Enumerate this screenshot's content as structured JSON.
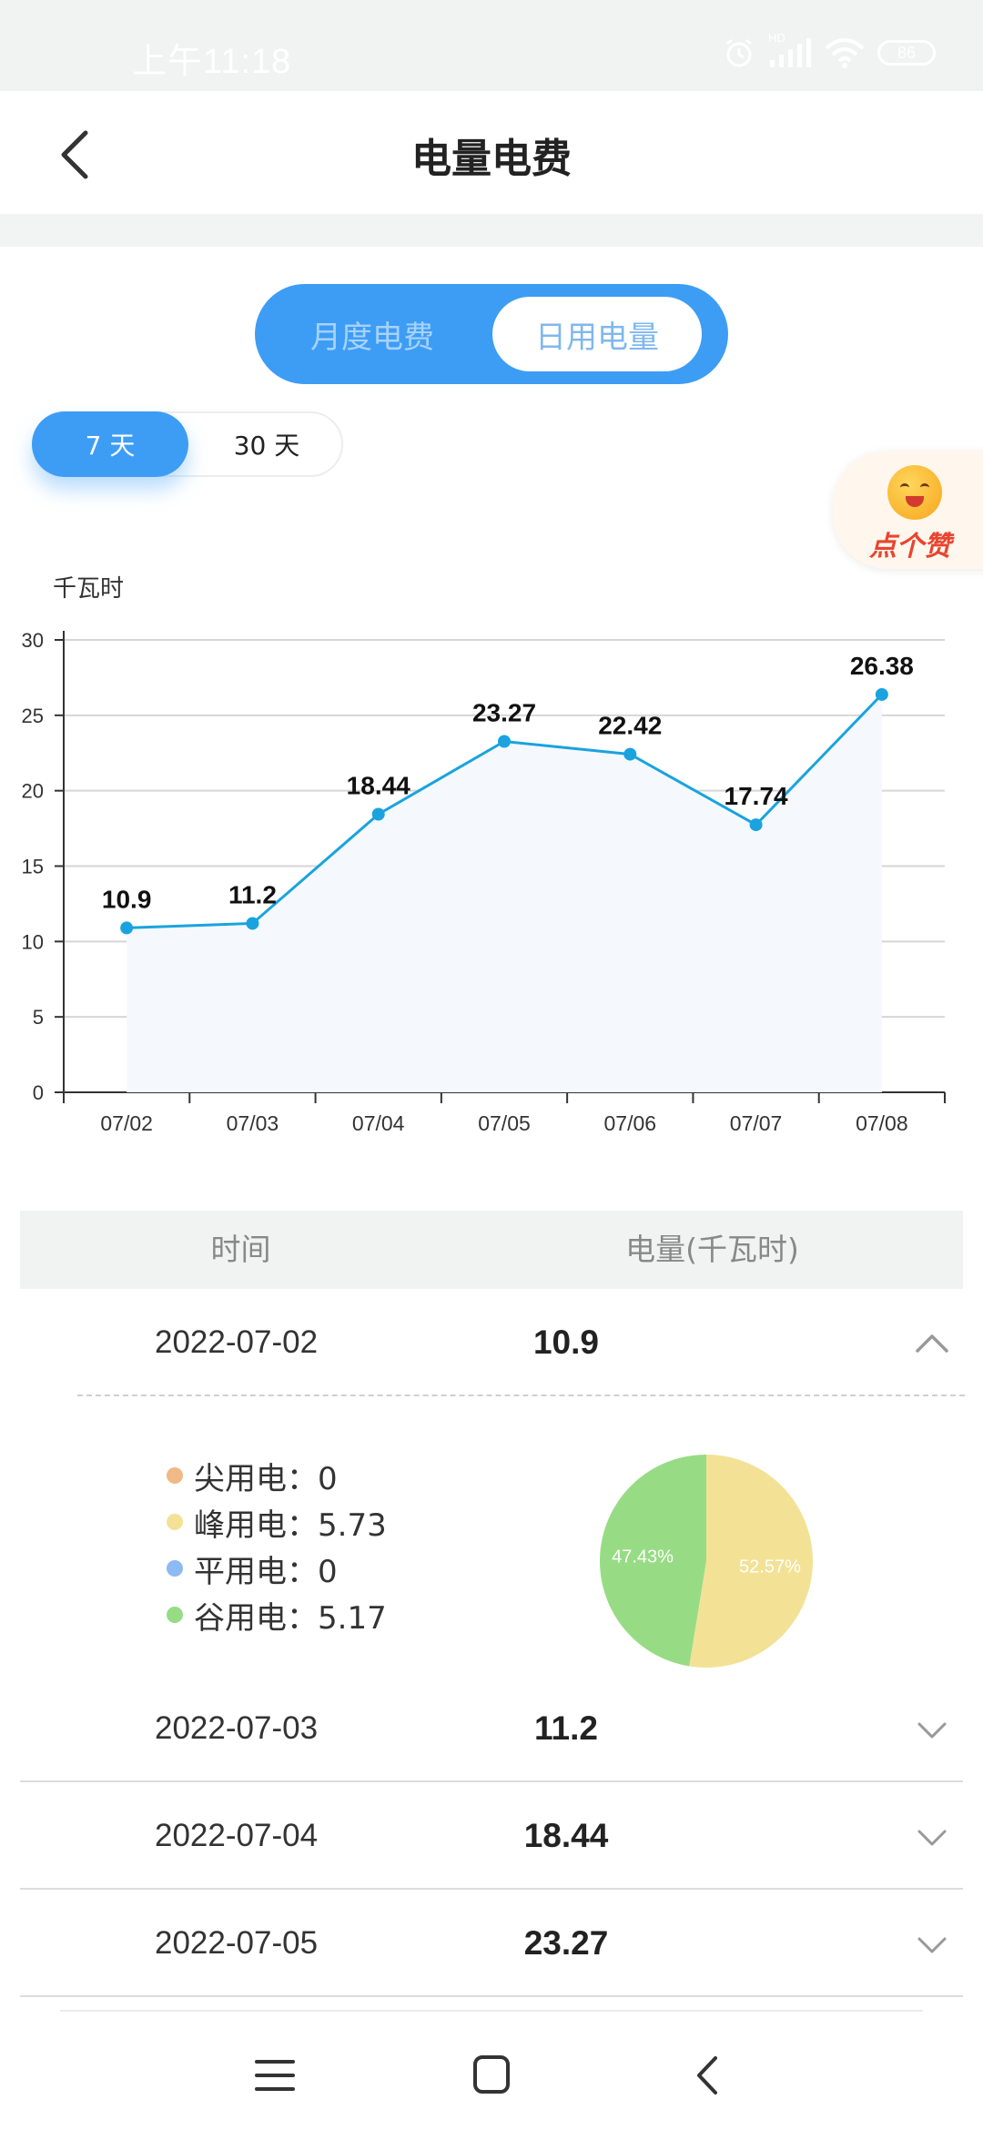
{
  "status_bar": {
    "time": "上午11:18",
    "battery": "86",
    "hd_label": "HD",
    "icons": [
      "alarm-icon",
      "signal-icon",
      "wifi-icon",
      "battery-icon"
    ]
  },
  "header": {
    "title": "电量电费",
    "back_icon": "chevron-left-icon"
  },
  "segment": {
    "monthly_label": "月度电费",
    "daily_label": "日用电量",
    "selected": "daily"
  },
  "range_toggle": {
    "seven_label": "7 天",
    "thirty_label": "30 天",
    "selected": "7"
  },
  "like_badge": {
    "label": "点个赞"
  },
  "chart_data": {
    "type": "line",
    "ylabel": "千瓦时",
    "ylim": [
      0,
      30
    ],
    "yticks": [
      0,
      5,
      10,
      15,
      20,
      25,
      30
    ],
    "categories": [
      "07/02",
      "07/03",
      "07/04",
      "07/05",
      "07/06",
      "07/07",
      "07/08"
    ],
    "values": [
      10.9,
      11.2,
      18.44,
      23.27,
      22.42,
      17.74,
      26.38
    ],
    "data_labels": [
      "10.9",
      "11.2",
      "18.44",
      "23.27",
      "22.42",
      "17.74",
      "26.38"
    ],
    "grid": true,
    "area_fill": true,
    "colors": {
      "line": "#1aa3de",
      "area": "#f5f9fd",
      "grid": "#d6d6d6"
    }
  },
  "table": {
    "headers": {
      "time": "时间",
      "kwh": "电量(千瓦时)"
    },
    "rows": [
      {
        "date": "2022-07-02",
        "value": "10.9",
        "expanded": true
      },
      {
        "date": "2022-07-03",
        "value": "11.2",
        "expanded": false
      },
      {
        "date": "2022-07-04",
        "value": "18.44",
        "expanded": false
      },
      {
        "date": "2022-07-05",
        "value": "23.27",
        "expanded": false
      }
    ]
  },
  "detail": {
    "legend": [
      {
        "label": "尖用电：0",
        "color": "#f0b985"
      },
      {
        "label": "峰用电：5.73",
        "color": "#f3e296"
      },
      {
        "label": "平用电：0",
        "color": "#8cbaf2"
      },
      {
        "label": "谷用电：5.17",
        "color": "#97dc84"
      }
    ],
    "pie": {
      "type": "pie",
      "slices": [
        {
          "value": 52.57,
          "label": "52.57%",
          "color": "#f3e296"
        },
        {
          "value": 47.43,
          "label": "47.43%",
          "color": "#97dc84"
        }
      ]
    }
  },
  "bottom_nav": {
    "icons": [
      "menu-icon",
      "home-square-icon",
      "back-chevron-icon"
    ]
  }
}
